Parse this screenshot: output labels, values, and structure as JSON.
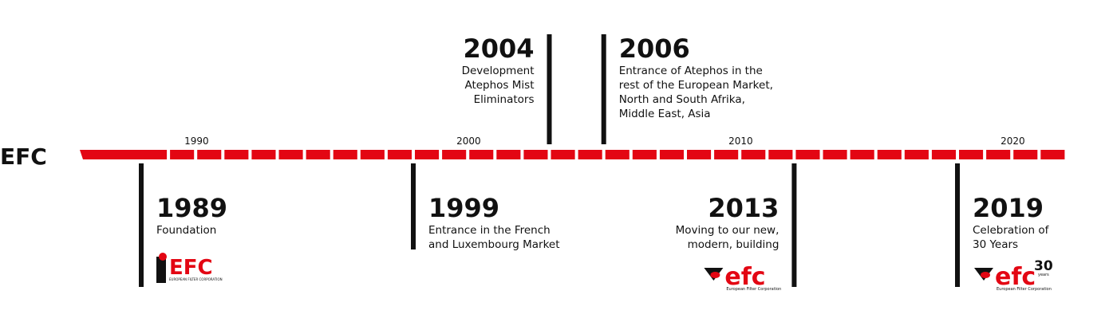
{
  "brand": "EFC",
  "decades": [
    "1990",
    "2000",
    "2010",
    "2020"
  ],
  "events": [
    {
      "year": "1989",
      "side": "below",
      "align": "start",
      "lines": [
        "Foundation"
      ],
      "logo": "old"
    },
    {
      "year": "1999",
      "side": "below",
      "align": "start",
      "lines": [
        "Entrance in the French",
        "and Luxembourg Market"
      ]
    },
    {
      "year": "2004",
      "side": "above",
      "align": "end",
      "lines": [
        "Development",
        "Atephos Mist",
        "Eliminators"
      ]
    },
    {
      "year": "2006",
      "side": "above",
      "align": "start",
      "lines": [
        "Entrance of Atephos in the",
        "rest of the European Market,",
        "North and South Afrika,",
        "Middle East, Asia"
      ]
    },
    {
      "year": "2013",
      "side": "below",
      "align": "end",
      "lines": [
        "Moving to our new,",
        "modern, building"
      ],
      "logo": "new"
    },
    {
      "year": "2019",
      "side": "below",
      "align": "start",
      "lines": [
        "Celebration of",
        "30 Years"
      ],
      "logo": "anniv"
    }
  ],
  "logos": {
    "old": {
      "text": "EFC",
      "sub": "EUROPEAN FILTER CORPORATION"
    },
    "new": {
      "text": "efc",
      "sub": "European Filter Corporation"
    },
    "anniv": {
      "text": "efc",
      "sup": "30",
      "supsub": "years",
      "sub": "European Filter Corporation"
    }
  }
}
